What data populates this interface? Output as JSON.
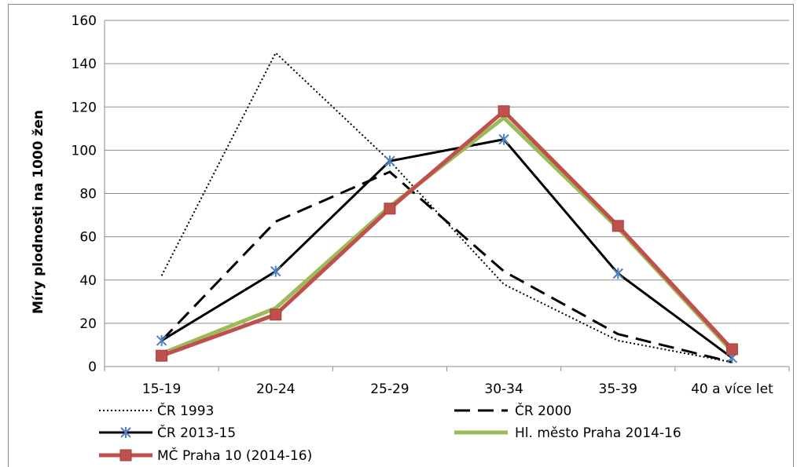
{
  "chart_data": {
    "type": "line",
    "title": "",
    "xlabel": "",
    "ylabel": "Míry plodnosti na 1000 žen",
    "ylim": [
      0,
      160
    ],
    "yticks": [
      0,
      20,
      40,
      60,
      80,
      100,
      120,
      140,
      160
    ],
    "grid": true,
    "legend_position": "bottom",
    "categories": [
      "15-19",
      "20-24",
      "25-29",
      "30-34",
      "35-39",
      "40 a více let"
    ],
    "series": [
      {
        "name": "ČR 1993",
        "values": [
          42,
          145,
          95,
          38,
          12,
          2
        ],
        "color": "#000000",
        "style": "dotted",
        "marker": "none"
      },
      {
        "name": "ČR 2000",
        "values": [
          12,
          67,
          90,
          44,
          15,
          2
        ],
        "color": "#000000",
        "style": "dashed",
        "marker": "none"
      },
      {
        "name": "ČR 2013-15",
        "values": [
          12,
          44,
          95,
          105,
          43,
          4
        ],
        "color": "#000000",
        "style": "solid",
        "marker": "star"
      },
      {
        "name": "Hl. město Praha 2014-16",
        "values": [
          6,
          27,
          74,
          115,
          64,
          7
        ],
        "color": "#9bbb59",
        "style": "solid",
        "marker": "none"
      },
      {
        "name": "MČ Praha 10 (2014-16)",
        "values": [
          5,
          24,
          73,
          118,
          65,
          8
        ],
        "color": "#c0504d",
        "style": "solid",
        "marker": "square"
      }
    ]
  }
}
